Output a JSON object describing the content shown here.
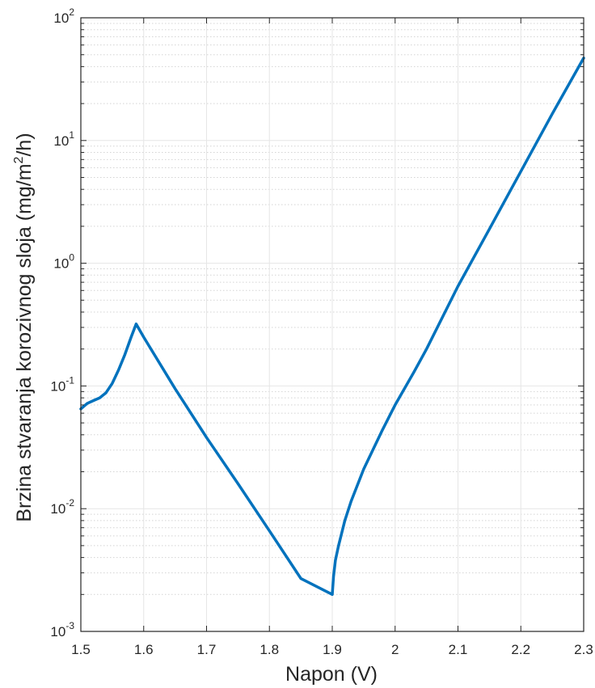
{
  "chart_data": {
    "type": "line",
    "title": "",
    "xlabel": "Napon (V)",
    "ylabel": {
      "prefix": "Brzina stvaranja korozivnog sloja (mg/m",
      "sup": "2",
      "suffix": "/h)"
    },
    "x_scale": "linear",
    "y_scale": "log",
    "xlim": [
      1.5,
      2.3
    ],
    "ylim": [
      0.001,
      100
    ],
    "grid": true,
    "minor_grid": true,
    "x_ticks": [
      1.5,
      1.6,
      1.7,
      1.8,
      1.9,
      2.0,
      2.1,
      2.2,
      2.3
    ],
    "x_tick_labels": [
      "1.5",
      "1.6",
      "1.7",
      "1.8",
      "1.9",
      "2",
      "2.1",
      "2.2",
      "2.3"
    ],
    "y_ticks": [
      {
        "value": 0.001,
        "base": "10",
        "exp": "-3"
      },
      {
        "value": 0.01,
        "base": "10",
        "exp": "-2"
      },
      {
        "value": 0.1,
        "base": "10",
        "exp": "-1"
      },
      {
        "value": 1,
        "base": "10",
        "exp": "0"
      },
      {
        "value": 10,
        "base": "10",
        "exp": "1"
      },
      {
        "value": 100,
        "base": "10",
        "exp": "2"
      }
    ],
    "series": [
      {
        "color": "#0072BD",
        "x": [
          1.5,
          1.51,
          1.52,
          1.53,
          1.54,
          1.55,
          1.56,
          1.57,
          1.58,
          1.588,
          1.6,
          1.65,
          1.7,
          1.75,
          1.8,
          1.85,
          1.9,
          1.902,
          1.905,
          1.91,
          1.92,
          1.93,
          1.95,
          1.98,
          2.0,
          2.03,
          2.05,
          2.1,
          2.15,
          2.2,
          2.25,
          2.3
        ],
        "y": [
          0.065,
          0.072,
          0.076,
          0.08,
          0.088,
          0.105,
          0.135,
          0.18,
          0.25,
          0.32,
          0.25,
          0.095,
          0.038,
          0.016,
          0.0066,
          0.0027,
          0.002,
          0.0028,
          0.0038,
          0.005,
          0.008,
          0.0115,
          0.021,
          0.044,
          0.07,
          0.13,
          0.2,
          0.65,
          1.9,
          5.6,
          16.5,
          47
        ]
      }
    ]
  }
}
